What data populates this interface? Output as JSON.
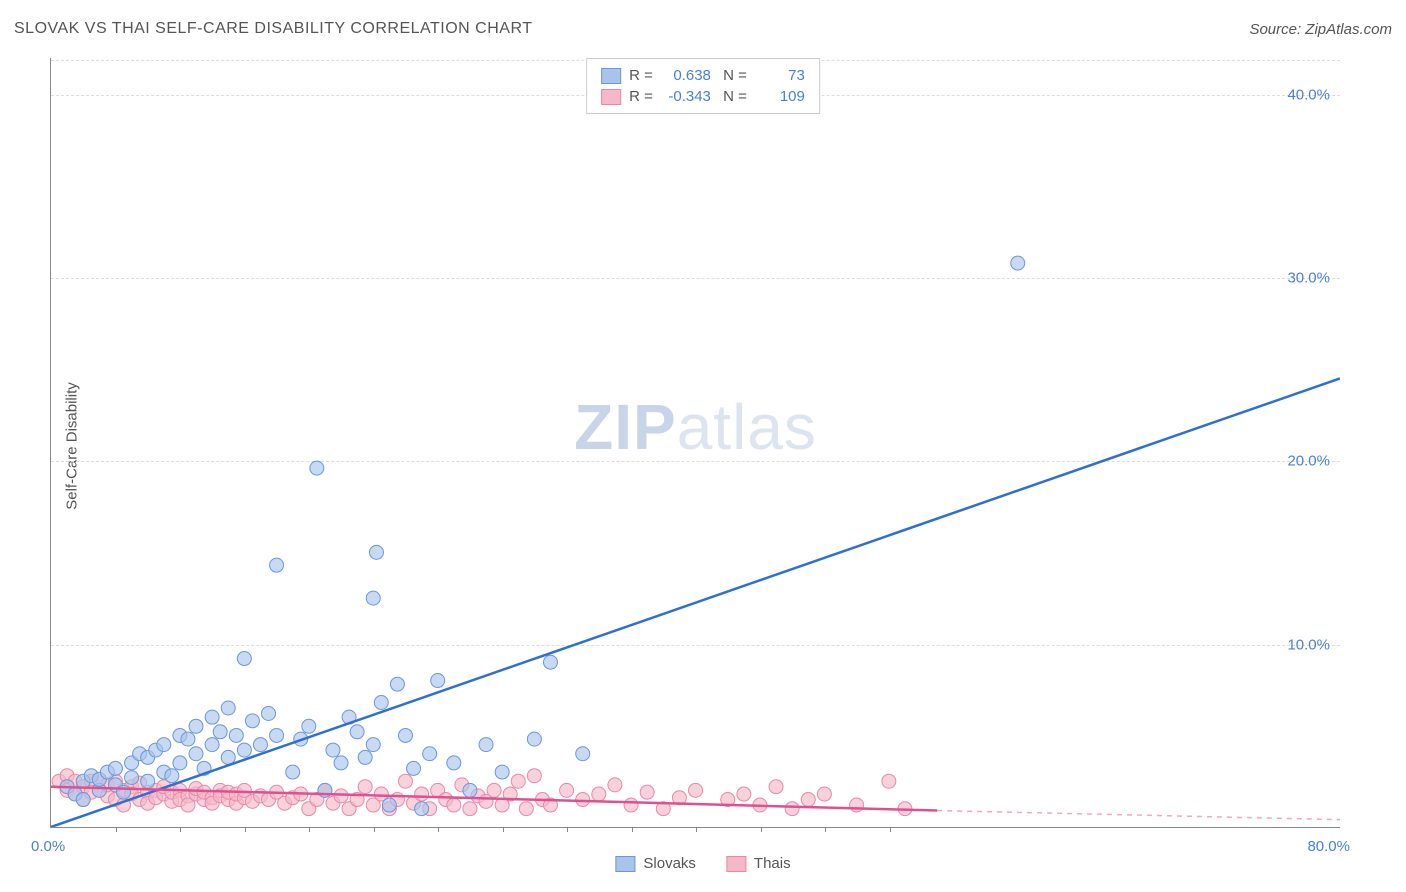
{
  "title": "SLOVAK VS THAI SELF-CARE DISABILITY CORRELATION CHART",
  "source": "Source: ZipAtlas.com",
  "ylabel": "Self-Care Disability",
  "watermark_strong": "ZIP",
  "watermark_light": "atlas",
  "chart": {
    "type": "scatter",
    "xlim": [
      0,
      80
    ],
    "ylim": [
      0,
      42
    ],
    "xtick_labels": [
      "0.0%",
      "80.0%"
    ],
    "ytick_values": [
      10,
      20,
      30,
      40
    ],
    "ytick_labels": [
      "10.0%",
      "20.0%",
      "30.0%",
      "40.0%"
    ],
    "xtick_positions_pct": [
      4,
      8,
      12,
      16,
      20,
      24,
      28,
      32,
      36,
      40,
      44,
      48,
      52
    ],
    "grid_color": "#dddddd",
    "axis_color": "#888888",
    "background_color": "#ffffff",
    "series": [
      {
        "name": "Slovaks",
        "color_fill": "#a9c4ec",
        "color_stroke": "#6b97d9",
        "line_color": "#2f6fd0",
        "r_value": "0.638",
        "n_value": "73",
        "trend": {
          "x1": 0,
          "y1": 0,
          "x2": 80,
          "y2": 24.5
        },
        "points": [
          [
            1,
            2.2
          ],
          [
            1.5,
            1.8
          ],
          [
            2,
            2.5
          ],
          [
            2,
            1.5
          ],
          [
            2.5,
            2.8
          ],
          [
            3,
            2.0
          ],
          [
            3,
            2.6
          ],
          [
            3.5,
            3.0
          ],
          [
            4,
            2.3
          ],
          [
            4,
            3.2
          ],
          [
            4.5,
            1.9
          ],
          [
            5,
            2.7
          ],
          [
            5,
            3.5
          ],
          [
            5.5,
            4.0
          ],
          [
            6,
            2.5
          ],
          [
            6,
            3.8
          ],
          [
            6.5,
            4.2
          ],
          [
            7,
            3.0
          ],
          [
            7,
            4.5
          ],
          [
            7.5,
            2.8
          ],
          [
            8,
            5.0
          ],
          [
            8,
            3.5
          ],
          [
            8.5,
            4.8
          ],
          [
            9,
            4.0
          ],
          [
            9,
            5.5
          ],
          [
            9.5,
            3.2
          ],
          [
            10,
            6.0
          ],
          [
            10,
            4.5
          ],
          [
            10.5,
            5.2
          ],
          [
            11,
            3.8
          ],
          [
            11,
            6.5
          ],
          [
            11.5,
            5.0
          ],
          [
            12,
            4.2
          ],
          [
            12,
            9.2
          ],
          [
            12.5,
            5.8
          ],
          [
            13,
            4.5
          ],
          [
            13.5,
            6.2
          ],
          [
            14,
            5.0
          ],
          [
            14,
            14.3
          ],
          [
            15,
            3.0
          ],
          [
            15.5,
            4.8
          ],
          [
            16,
            5.5
          ],
          [
            16.5,
            19.6
          ],
          [
            17,
            2.0
          ],
          [
            17.5,
            4.2
          ],
          [
            18,
            3.5
          ],
          [
            18.5,
            6.0
          ],
          [
            19,
            5.2
          ],
          [
            19.5,
            3.8
          ],
          [
            20,
            4.5
          ],
          [
            20,
            12.5
          ],
          [
            20.2,
            15.0
          ],
          [
            20.5,
            6.8
          ],
          [
            21,
            1.2
          ],
          [
            21.5,
            7.8
          ],
          [
            22,
            5.0
          ],
          [
            22.5,
            3.2
          ],
          [
            23,
            1.0
          ],
          [
            23.5,
            4.0
          ],
          [
            24,
            8.0
          ],
          [
            25,
            3.5
          ],
          [
            26,
            2.0
          ],
          [
            27,
            4.5
          ],
          [
            28,
            3.0
          ],
          [
            30,
            4.8
          ],
          [
            31,
            9.0
          ],
          [
            33,
            4.0
          ],
          [
            60,
            30.8
          ]
        ]
      },
      {
        "name": "Thais",
        "color_fill": "#f5b8c8",
        "color_stroke": "#e888a8",
        "line_color": "#e05090",
        "r_value": "-0.343",
        "n_value": "109",
        "trend": {
          "x1": 0,
          "y1": 2.2,
          "x2": 55,
          "y2": 0.9
        },
        "trend_dash": {
          "x1": 55,
          "y1": 0.9,
          "x2": 80,
          "y2": 0.4
        },
        "points": [
          [
            0.5,
            2.5
          ],
          [
            1,
            2.0
          ],
          [
            1,
            2.8
          ],
          [
            1.5,
            1.8
          ],
          [
            1.5,
            2.5
          ],
          [
            2,
            2.2
          ],
          [
            2,
            1.5
          ],
          [
            2.5,
            2.5
          ],
          [
            2.5,
            1.9
          ],
          [
            3,
            2.0
          ],
          [
            3,
            2.6
          ],
          [
            3.5,
            1.7
          ],
          [
            3.5,
            2.3
          ],
          [
            4,
            2.5
          ],
          [
            4,
            1.5
          ],
          [
            4.5,
            2.0
          ],
          [
            4.5,
            1.2
          ],
          [
            5,
            2.2
          ],
          [
            5,
            1.8
          ],
          [
            5.5,
            1.5
          ],
          [
            5.5,
            2.4
          ],
          [
            6,
            1.9
          ],
          [
            6,
            1.3
          ],
          [
            6.5,
            2.0
          ],
          [
            6.5,
            1.6
          ],
          [
            7,
            1.8
          ],
          [
            7,
            2.2
          ],
          [
            7.5,
            1.4
          ],
          [
            7.5,
            1.9
          ],
          [
            8,
            2.0
          ],
          [
            8,
            1.5
          ],
          [
            8.5,
            1.7
          ],
          [
            8.5,
            1.2
          ],
          [
            9,
            1.8
          ],
          [
            9,
            2.1
          ],
          [
            9.5,
            1.5
          ],
          [
            9.5,
            1.9
          ],
          [
            10,
            1.6
          ],
          [
            10,
            1.3
          ],
          [
            10.5,
            2.0
          ],
          [
            10.5,
            1.7
          ],
          [
            11,
            1.5
          ],
          [
            11,
            1.9
          ],
          [
            11.5,
            1.3
          ],
          [
            11.5,
            1.8
          ],
          [
            12,
            1.6
          ],
          [
            12,
            2.0
          ],
          [
            12.5,
            1.4
          ],
          [
            13,
            1.7
          ],
          [
            13.5,
            1.5
          ],
          [
            14,
            1.9
          ],
          [
            14.5,
            1.3
          ],
          [
            15,
            1.6
          ],
          [
            15.5,
            1.8
          ],
          [
            16,
            1.0
          ],
          [
            16.5,
            1.5
          ],
          [
            17,
            2.0
          ],
          [
            17.5,
            1.3
          ],
          [
            18,
            1.7
          ],
          [
            18.5,
            1.0
          ],
          [
            19,
            1.5
          ],
          [
            19.5,
            2.2
          ],
          [
            20,
            1.2
          ],
          [
            20.5,
            1.8
          ],
          [
            21,
            1.0
          ],
          [
            21.5,
            1.5
          ],
          [
            22,
            2.5
          ],
          [
            22.5,
            1.3
          ],
          [
            23,
            1.8
          ],
          [
            23.5,
            1.0
          ],
          [
            24,
            2.0
          ],
          [
            24.5,
            1.5
          ],
          [
            25,
            1.2
          ],
          [
            25.5,
            2.3
          ],
          [
            26,
            1.0
          ],
          [
            26.5,
            1.7
          ],
          [
            27,
            1.4
          ],
          [
            27.5,
            2.0
          ],
          [
            28,
            1.2
          ],
          [
            28.5,
            1.8
          ],
          [
            29,
            2.5
          ],
          [
            29.5,
            1.0
          ],
          [
            30,
            2.8
          ],
          [
            30.5,
            1.5
          ],
          [
            31,
            1.2
          ],
          [
            32,
            2.0
          ],
          [
            33,
            1.5
          ],
          [
            34,
            1.8
          ],
          [
            35,
            2.3
          ],
          [
            36,
            1.2
          ],
          [
            37,
            1.9
          ],
          [
            38,
            1.0
          ],
          [
            39,
            1.6
          ],
          [
            40,
            2.0
          ],
          [
            42,
            1.5
          ],
          [
            43,
            1.8
          ],
          [
            44,
            1.2
          ],
          [
            45,
            2.2
          ],
          [
            46,
            1.0
          ],
          [
            47,
            1.5
          ],
          [
            48,
            1.8
          ],
          [
            50,
            1.2
          ],
          [
            52,
            2.5
          ],
          [
            53,
            1.0
          ]
        ]
      }
    ]
  },
  "legend_bottom": [
    {
      "label": "Slovaks",
      "fill": "#a9c4ec",
      "stroke": "#6b97d9"
    },
    {
      "label": "Thais",
      "fill": "#f5b8c8",
      "stroke": "#e888a8"
    }
  ]
}
